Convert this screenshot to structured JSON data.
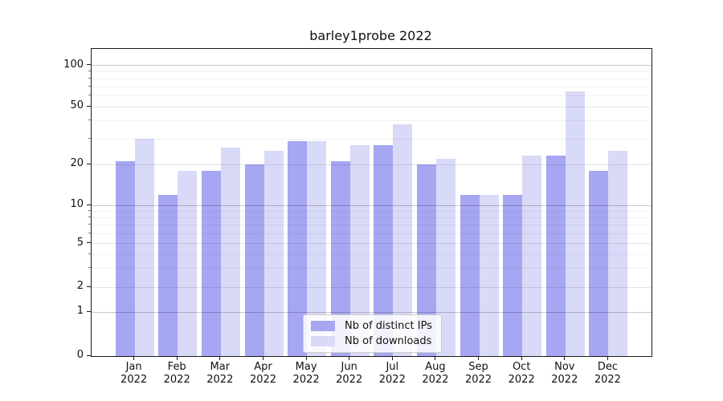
{
  "chart_data": {
    "type": "bar",
    "title": "barley1probe 2022",
    "categories": [
      "Jan",
      "Feb",
      "Mar",
      "Apr",
      "May",
      "Jun",
      "Jul",
      "Aug",
      "Sep",
      "Oct",
      "Nov",
      "Dec"
    ],
    "year": "2022",
    "series": [
      {
        "name": "Nb of distinct IPs",
        "color": "#a6a6f2",
        "values": [
          21,
          12,
          18,
          20,
          29,
          21,
          27,
          20,
          12,
          12,
          23,
          18
        ]
      },
      {
        "name": "Nb of downloads",
        "color": "#d9d9f8",
        "values": [
          30,
          18,
          26,
          25,
          29,
          27,
          38,
          22,
          12,
          23,
          65,
          25
        ]
      }
    ],
    "xlabel": "",
    "ylabel": "",
    "yscale": "symlog",
    "ylim": [
      0,
      130
    ],
    "ytick_values": [
      0,
      1,
      2,
      5,
      10,
      20,
      50,
      100
    ],
    "ytick_labels": [
      "0",
      "1",
      "2",
      "5",
      "10",
      "20",
      "50",
      "100"
    ],
    "yticks_minor": [
      3,
      4,
      6,
      7,
      8,
      9,
      30,
      40,
      60,
      70,
      80,
      90
    ],
    "grid": true,
    "grid_over_bars": true,
    "legend_position": "lower center"
  },
  "style": {
    "spine_color": "#1a1a1a",
    "text_color": "#111111",
    "grid_major_color": "rgba(0,0,0,0.22)",
    "grid_mid_color": "rgba(0,0,0,0.10)",
    "grid_minor_color": "rgba(0,0,0,0.05)",
    "legend_border_color": "#cccccc",
    "legend_bg_color": "rgba(255,255,255,0.85)"
  }
}
